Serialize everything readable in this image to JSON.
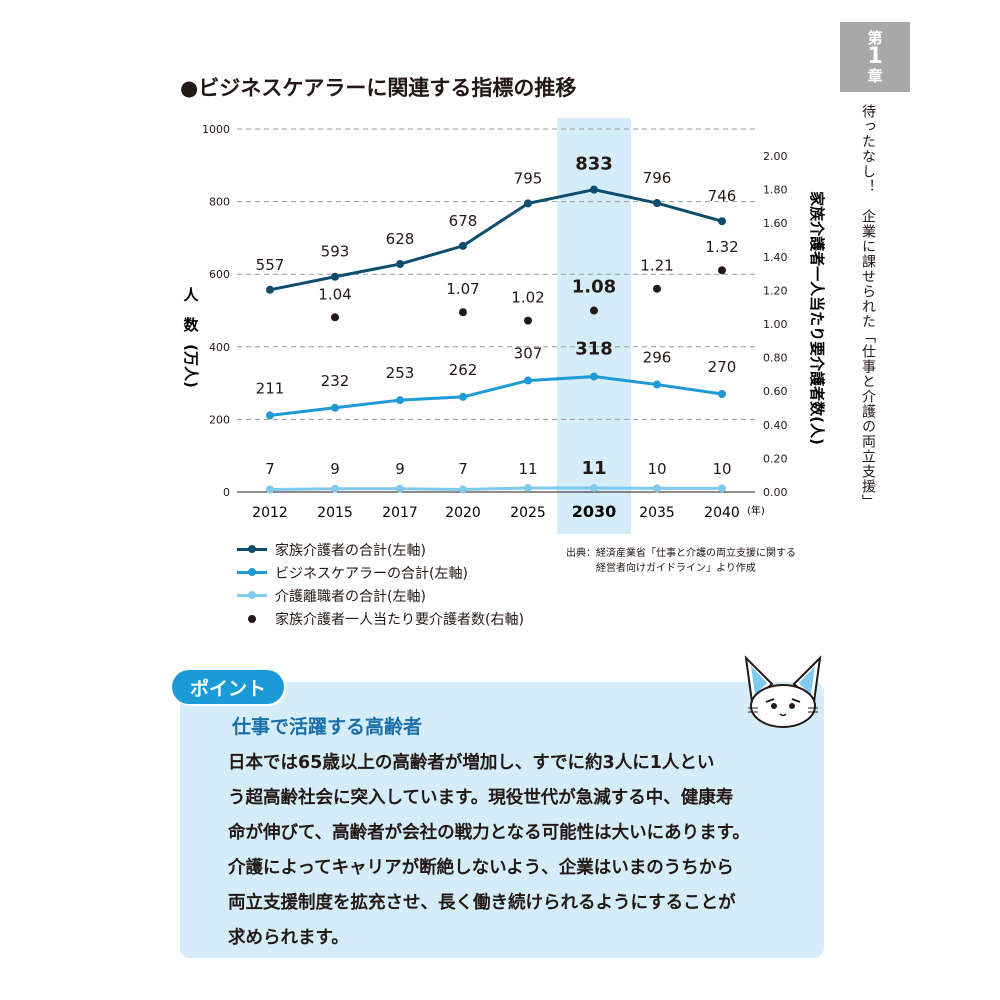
{
  "side_tab": {
    "line1": "第",
    "line2": "1",
    "line3": "章"
  },
  "side_title": "待ったなし！　企業に課せられた「仕事と介護の両立支援」",
  "chart_title": "●ビジネスケアラーに関連する指標の推移",
  "chart_data": {
    "type": "line",
    "categories": [
      "2012",
      "2015",
      "2017",
      "2020",
      "2025",
      "2030",
      "2035",
      "2040"
    ],
    "highlight_category": "2030",
    "x_unit": "(年)",
    "left_axis": {
      "label": "人数(万人)",
      "label_chars": [
        "人",
        "数",
        "(万人)"
      ],
      "min": 0,
      "max": 1000,
      "ticks": [
        "0",
        "200",
        "400",
        "600",
        "800",
        "1000"
      ]
    },
    "right_axis": {
      "label": "家族介護者一人当たり要介護者数(人)",
      "min": 0,
      "max": 2.0,
      "ticks": [
        "0.00",
        "0.20",
        "0.40",
        "0.60",
        "0.80",
        "1.00",
        "1.20",
        "1.40",
        "1.60",
        "1.80",
        "2.00"
      ]
    },
    "grid": "dashed",
    "series": [
      {
        "name": "家族介護者の合計(左軸)",
        "axis": "left",
        "color": "#0e4d6e",
        "values": [
          557,
          593,
          628,
          678,
          795,
          833,
          796,
          746
        ],
        "labels": [
          "557",
          "593",
          "628",
          "678",
          "795",
          "833",
          "796",
          "746"
        ]
      },
      {
        "name": "ビジネスケアラーの合計(左軸)",
        "axis": "left",
        "color": "#1e9ad6",
        "values": [
          211,
          232,
          253,
          262,
          307,
          318,
          296,
          270
        ],
        "labels": [
          "211",
          "232",
          "253",
          "262",
          "307",
          "318",
          "296",
          "270"
        ]
      },
      {
        "name": "介護離職者の合計(左軸)",
        "axis": "left",
        "color": "#7fcaec",
        "values": [
          7,
          9,
          9,
          7,
          11,
          11,
          10,
          10
        ],
        "labels": [
          "7",
          "9",
          "9",
          "7",
          "11",
          "11",
          "10",
          "10"
        ]
      },
      {
        "name": "家族介護者一人当たり要介護者数(右軸)",
        "axis": "right",
        "type": "scatter",
        "color": "#231815",
        "x": [
          "2015",
          "2020",
          "2025",
          "2030",
          "2035",
          "2040"
        ],
        "values": [
          1.04,
          1.07,
          1.02,
          1.08,
          1.21,
          1.32
        ],
        "labels": [
          "1.04",
          "1.07",
          "1.02",
          "1.08",
          "1.21",
          "1.32"
        ]
      }
    ]
  },
  "legend": [
    {
      "label": "家族介護者の合計(左軸)",
      "color": "#0e4d6e"
    },
    {
      "label": "ビジネスケアラーの合計(左軸)",
      "color": "#1e9ad6"
    },
    {
      "label": "介護離職者の合計(左軸)",
      "color": "#7fcaec"
    },
    {
      "label": "家族介護者一人当たり要介護者数(右軸)",
      "color": "#231815"
    }
  ],
  "source": {
    "line1": "出典：経済産業省「仕事と介護の両立支援に関する",
    "line2": "経営者向けガイドライン」より作成"
  },
  "point": {
    "badge": "ポイント",
    "heading": "仕事で活躍する高齢者",
    "lines": [
      "日本では65歳以上の高齢者が増加し、すでに約3人に1人とい",
      "う超高齢社会に突入しています。現役世代が急減する中、健康寿",
      "命が伸びて、高齢者が会社の戦力となる可能性は大いにあります。",
      "介護によってキャリアが断絶しないよう、企業はいまのうちから",
      "両立支援制度を拡充させ、長く働き続けられるようにすることが",
      "求められます。"
    ]
  }
}
